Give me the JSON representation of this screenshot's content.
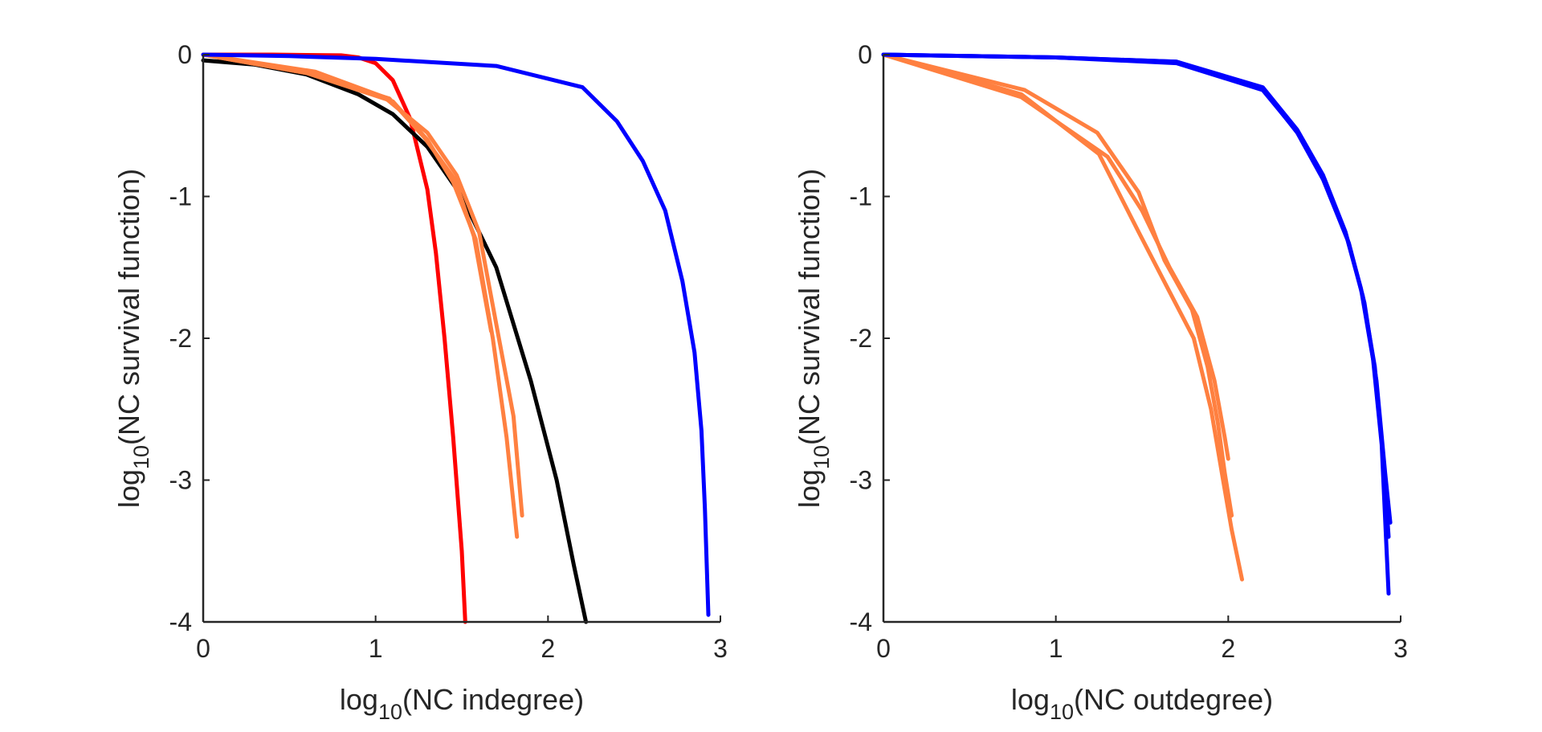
{
  "chart_data": [
    {
      "type": "line",
      "title": "",
      "xlabel": {
        "base": "log",
        "sub": "10",
        "text": "(NC indegree)"
      },
      "ylabel": {
        "base": "log",
        "sub": "10",
        "text": "(NC survival function)"
      },
      "xlim": [
        0,
        3
      ],
      "ylim": [
        -4,
        0
      ],
      "xticks": [
        "0",
        "1",
        "2",
        "3"
      ],
      "yticks": [
        "0",
        "-1",
        "-2",
        "-3",
        "-4"
      ],
      "grid": false,
      "legend": "none",
      "series": [
        {
          "color": "#ff0000",
          "x": [
            0,
            0.4,
            0.8,
            0.9,
            1.0,
            1.1,
            1.2,
            1.3,
            1.35,
            1.4,
            1.45,
            1.5,
            1.52
          ],
          "y": [
            0,
            0,
            -0.005,
            -0.02,
            -0.06,
            -0.18,
            -0.45,
            -0.95,
            -1.4,
            -2.0,
            -2.7,
            -3.5,
            -4.0
          ]
        },
        {
          "color": "#000000",
          "x": [
            0,
            0.3,
            0.6,
            0.9,
            1.1,
            1.3,
            1.5,
            1.7,
            1.9,
            2.05,
            2.15,
            2.22
          ],
          "y": [
            -0.04,
            -0.07,
            -0.14,
            -0.28,
            -0.42,
            -0.65,
            -1.0,
            -1.5,
            -2.3,
            -3.0,
            -3.6,
            -4.0
          ]
        },
        {
          "color": "#ff8040",
          "x": [
            0,
            0.6,
            1.1,
            1.3,
            1.45,
            1.58,
            1.68,
            1.76,
            1.82
          ],
          "y": [
            0,
            -0.13,
            -0.33,
            -0.6,
            -0.9,
            -1.3,
            -2.0,
            -2.7,
            -3.4
          ]
        },
        {
          "color": "#ff8040",
          "x": [
            0,
            0.65,
            1.05,
            1.3,
            1.47,
            1.6,
            1.7,
            1.8,
            1.85
          ],
          "y": [
            0,
            -0.12,
            -0.3,
            -0.55,
            -0.85,
            -1.25,
            -1.9,
            -2.55,
            -3.25
          ]
        },
        {
          "color": "#ff8040",
          "x": [
            0,
            0.6,
            1.08,
            1.28,
            1.46,
            1.57,
            1.67
          ],
          "y": [
            0,
            -0.13,
            -0.31,
            -0.58,
            -0.88,
            -1.28,
            -1.95
          ]
        },
        {
          "color": "#0000ff",
          "x": [
            0,
            0.5,
            1.0,
            1.7,
            2.2,
            2.4,
            2.55,
            2.68,
            2.78,
            2.85,
            2.89,
            2.91,
            2.93
          ],
          "y": [
            0,
            -0.01,
            -0.03,
            -0.08,
            -0.23,
            -0.47,
            -0.75,
            -1.1,
            -1.6,
            -2.1,
            -2.65,
            -3.2,
            -3.95
          ]
        }
      ]
    },
    {
      "type": "line",
      "title": "",
      "xlabel": {
        "base": "log",
        "sub": "10",
        "text": "(NC outdegree)"
      },
      "ylabel": {
        "base": "log",
        "sub": "10",
        "text": "(NC survival function)"
      },
      "xlim": [
        0,
        3
      ],
      "ylim": [
        -4,
        0
      ],
      "xticks": [
        "0",
        "1",
        "2",
        "3"
      ],
      "yticks": [
        "0",
        "-1",
        "-2",
        "-3",
        "-4"
      ],
      "grid": false,
      "legend": "none",
      "series": [
        {
          "color": "#ff8040",
          "x": [
            0,
            0.8,
            1.25,
            1.48,
            1.65,
            1.8,
            1.9,
            1.97,
            2.02,
            2.08
          ],
          "y": [
            0,
            -0.28,
            -0.7,
            -1.25,
            -1.65,
            -2.0,
            -2.5,
            -3.0,
            -3.35,
            -3.7
          ]
        },
        {
          "color": "#ff8040",
          "x": [
            0,
            0.82,
            1.24,
            1.48,
            1.63,
            1.79,
            1.88,
            1.94,
            1.98,
            2.02
          ],
          "y": [
            0,
            -0.25,
            -0.55,
            -0.97,
            -1.45,
            -1.8,
            -2.2,
            -2.6,
            -2.95,
            -3.25
          ]
        },
        {
          "color": "#ff8040",
          "x": [
            0,
            0.8,
            1.3,
            1.5,
            1.66,
            1.82,
            1.92,
            1.98,
            2.0
          ],
          "y": [
            0,
            -0.3,
            -0.72,
            -1.1,
            -1.5,
            -1.85,
            -2.3,
            -2.7,
            -2.85
          ]
        },
        {
          "color": "#0000ff",
          "x": [
            0,
            1.0,
            1.7,
            2.2,
            2.4,
            2.55,
            2.68,
            2.77,
            2.84,
            2.89,
            2.93
          ],
          "y": [
            0,
            -0.02,
            -0.05,
            -0.23,
            -0.53,
            -0.85,
            -1.25,
            -1.65,
            -2.15,
            -2.75,
            -3.8
          ]
        },
        {
          "color": "#0000ff",
          "x": [
            0,
            1.0,
            1.7,
            2.2,
            2.4,
            2.55,
            2.69,
            2.78,
            2.85,
            2.9,
            2.93
          ],
          "y": [
            0,
            -0.02,
            -0.05,
            -0.24,
            -0.55,
            -0.88,
            -1.3,
            -1.7,
            -2.2,
            -2.85,
            -3.4
          ]
        },
        {
          "color": "#0000ff",
          "x": [
            0,
            1.0,
            1.7,
            2.2,
            2.41,
            2.56,
            2.7,
            2.79,
            2.86,
            2.91,
            2.94
          ],
          "y": [
            0,
            -0.02,
            -0.06,
            -0.25,
            -0.56,
            -0.9,
            -1.33,
            -1.75,
            -2.3,
            -2.95,
            -3.3
          ]
        }
      ]
    }
  ]
}
